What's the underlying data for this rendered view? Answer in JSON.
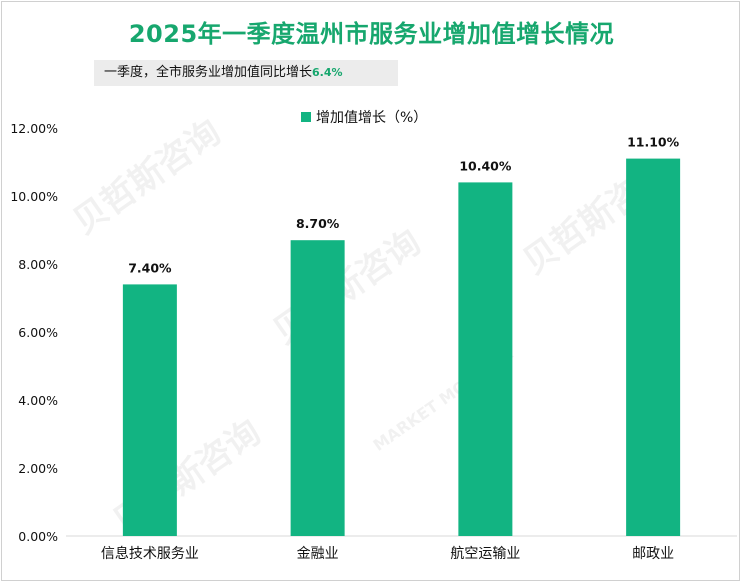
{
  "chart_data": {
    "type": "bar",
    "title": "2025年一季度温州市服务业增加值增长情况",
    "subtitle": {
      "text": "一季度，全市服务业增加值同比增长",
      "value": "6.4%"
    },
    "categories": [
      "信息技术服务业",
      "金融业",
      "航空运输业",
      "邮政业"
    ],
    "series": [
      {
        "name": "增加值增长（%）",
        "values": [
          7.4,
          8.7,
          10.4,
          11.1
        ],
        "labels": [
          "7.40%",
          "8.70%",
          "10.40%",
          "11.10%"
        ],
        "color": "#12b482"
      }
    ],
    "ylim": [
      0,
      12
    ],
    "yticks": [
      0,
      2,
      4,
      6,
      8,
      10,
      12
    ],
    "ytick_labels": [
      "0.00%",
      "2.00%",
      "4.00%",
      "6.00%",
      "8.00%",
      "10.00%",
      "12.00%"
    ],
    "legend": "top-center",
    "grid": false
  },
  "watermark": {
    "cn": "贝哲斯咨询",
    "en": "MARKET MONITOR"
  },
  "colors": {
    "title": "#17a76e",
    "bar": "#12b482",
    "axis": "#d9d9d9"
  }
}
